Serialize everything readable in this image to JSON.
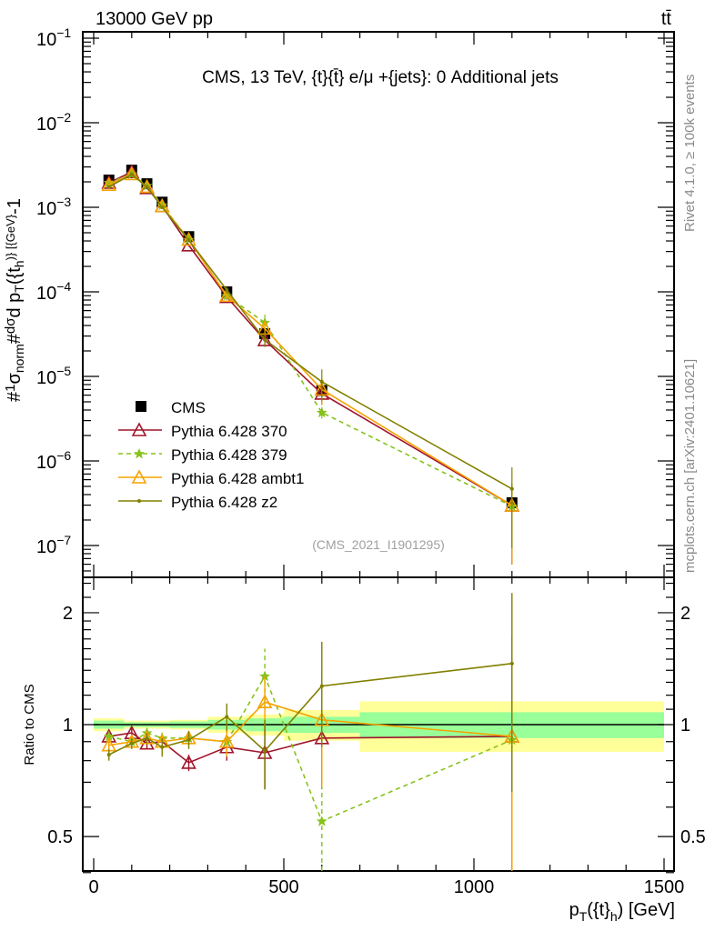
{
  "header": {
    "left": "13000 GeV pp",
    "right": "tt̄"
  },
  "side_text": {
    "upper": "Rivet 4.1.0, ≥ 100k events",
    "lower": "mcplots.cern.ch [arXiv:2401.10621]"
  },
  "chart_data": [
    {
      "type": "line",
      "title": "CMS, 13 TeV, {t}{t̄} e/μ +{jets}: 0 Additional jets",
      "watermark": "(CMS_2021_I1901295)",
      "ylabel_parts": [
        "#",
        "1",
        "σ",
        "norm",
        "#",
        "dσ",
        "d p",
        "T",
        "({t",
        "h",
        ")} [{GeV}",
        "-1",
        "]"
      ],
      "yscale": "log",
      "ylim": [
        4.2e-08,
        0.119
      ],
      "yticks": [
        {
          "base": "10",
          "exp": "−1",
          "v": 0.1
        },
        {
          "base": "10",
          "exp": "−2",
          "v": 0.01
        },
        {
          "base": "10",
          "exp": "−3",
          "v": 0.001
        },
        {
          "base": "10",
          "exp": "−4",
          "v": 0.0001
        },
        {
          "base": "10",
          "exp": "−5",
          "v": 1e-05
        },
        {
          "base": "10",
          "exp": "−6",
          "v": 1e-06
        },
        {
          "base": "10",
          "exp": "−7",
          "v": 1e-07
        }
      ],
      "legend_position": "lower-left",
      "x": [
        40,
        100,
        140,
        180,
        250,
        350,
        450,
        600,
        1100
      ],
      "bin_edges": [
        0,
        80,
        120,
        160,
        200,
        300,
        400,
        500,
        700,
        1500
      ],
      "data": {
        "name": "CMS",
        "values": [
          0.0021,
          0.00275,
          0.0019,
          0.00115,
          0.00045,
          0.0001,
          3.2e-05,
          6.8e-06,
          3.2e-07
        ]
      },
      "series": [
        {
          "name": "Pythia 6.428 370",
          "color": "#a0142a",
          "style": "solid",
          "marker": "triangle-open"
        },
        {
          "name": "Pythia 6.428 379",
          "color": "#86c21a",
          "style": "dashed",
          "marker": "star"
        },
        {
          "name": "Pythia 6.428 ambt1",
          "color": "#f5a300",
          "style": "solid",
          "marker": "triangle-open"
        },
        {
          "name": "Pythia 6.428 z2",
          "color": "#808000",
          "style": "solid",
          "marker": "dot"
        }
      ]
    },
    {
      "type": "line",
      "ylabel": "Ratio to CMS",
      "xlabel_parts": [
        "p",
        "T",
        "({t}",
        "h",
        ") [GeV]"
      ],
      "yscale": "log",
      "ylim": [
        0.404,
        2.49
      ],
      "yticks": [
        {
          "label": "0.5",
          "v": 0.5
        },
        {
          "label": "1",
          "v": 1
        },
        {
          "label": "2",
          "v": 2
        }
      ],
      "xlim": [
        -30,
        1530
      ],
      "xticks": [
        {
          "label": "0",
          "v": 0
        },
        {
          "label": "500",
          "v": 500
        },
        {
          "label": "1000",
          "v": 1000
        },
        {
          "label": "1500",
          "v": 1500
        }
      ],
      "x": [
        40,
        100,
        140,
        180,
        250,
        350,
        450,
        600,
        1100
      ],
      "bands": {
        "total": [
          0.04,
          0.025,
          0.025,
          0.025,
          0.03,
          0.05,
          0.065,
          0.095,
          0.155
        ],
        "stat": [
          0.025,
          0.015,
          0.015,
          0.015,
          0.02,
          0.03,
          0.04,
          0.05,
          0.08
        ],
        "total_color": "#ffff99",
        "stat_color": "#99ff99"
      },
      "series": [
        {
          "name": "Pythia 6.428 370",
          "ratio": [
            0.93,
            0.95,
            0.89,
            0.9,
            0.79,
            0.87,
            0.84,
            0.92,
            0.93
          ],
          "err": [
            0.03,
            0.03,
            0.03,
            0.04,
            0.04,
            0.07,
            0.17,
            0.25,
            0.8
          ]
        },
        {
          "name": "Pythia 6.428 379",
          "ratio": [
            0.93,
            0.9,
            0.95,
            0.92,
            0.92,
            0.9,
            1.35,
            0.55,
            0.91
          ],
          "err": [
            0.03,
            0.03,
            0.03,
            0.04,
            0.04,
            0.08,
            0.25,
            0.15,
            0.7
          ]
        },
        {
          "name": "Pythia 6.428 ambt1",
          "ratio": [
            0.88,
            0.9,
            0.92,
            0.9,
            0.92,
            0.9,
            1.15,
            1.03,
            0.93
          ],
          "err": [
            0.03,
            0.03,
            0.03,
            0.04,
            0.04,
            0.08,
            0.2,
            0.35,
            0.8
          ]
        },
        {
          "name": "Pythia 6.428 z2",
          "ratio": [
            0.83,
            0.89,
            0.92,
            0.87,
            0.91,
            1.05,
            0.85,
            1.27,
            1.46
          ],
          "err": [
            0.03,
            0.03,
            0.03,
            0.05,
            0.05,
            0.09,
            0.18,
            0.4,
            0.8
          ]
        }
      ]
    }
  ]
}
